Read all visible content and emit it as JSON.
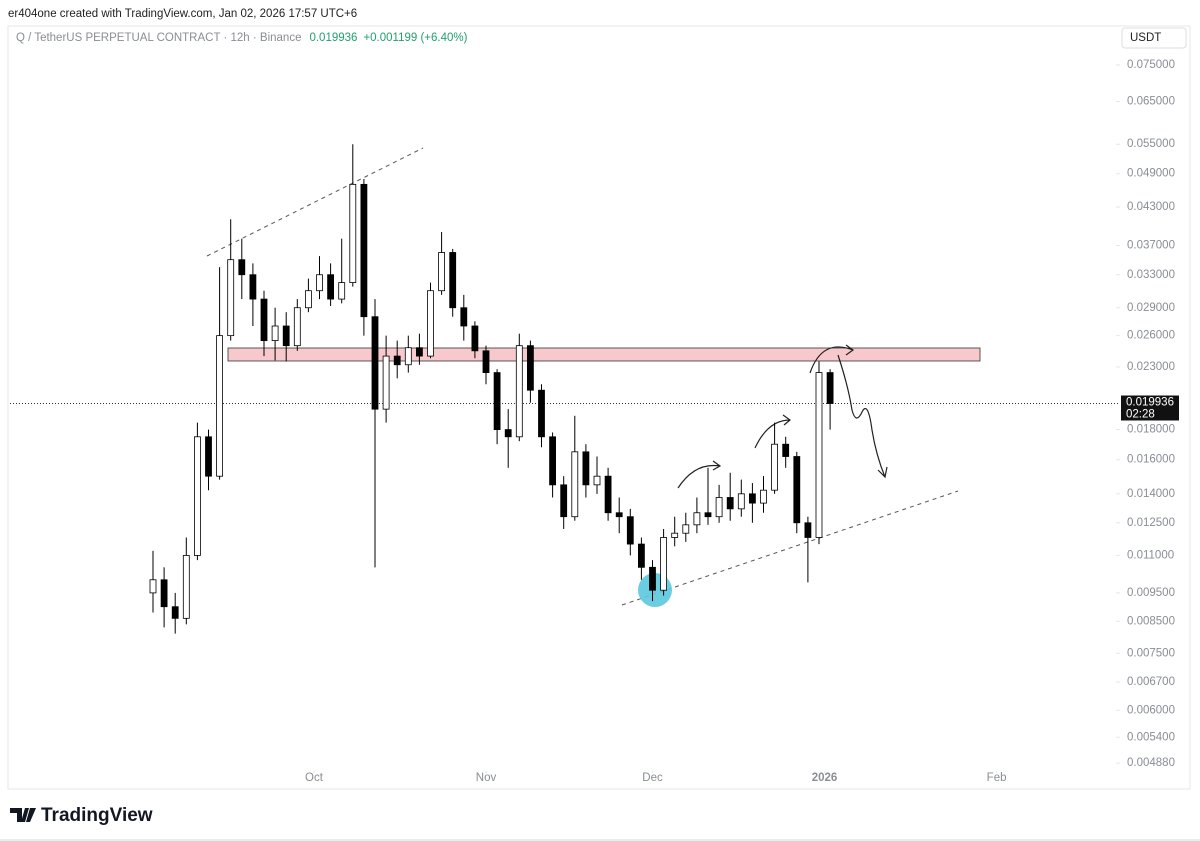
{
  "header": {
    "attribution": "er404one created with TradingView.com, Jan 02, 2026 17:57 UTC+6",
    "symbol": "Q / TetherUS PERPETUAL CONTRACT · 12h · Binance",
    "change": "+0.001199 (+6.40%)",
    "currency": "USDT"
  },
  "brand": "TradingView",
  "chart_data": {
    "type": "candlestick",
    "log_scale": true,
    "last_price": 0.019936,
    "countdown": "02:28",
    "categories": [
      null,
      null,
      null,
      null,
      null,
      null,
      null,
      null,
      null,
      null,
      null,
      null,
      null,
      null,
      null,
      null,
      null,
      null,
      null,
      null,
      null,
      null,
      null,
      null,
      null,
      null,
      null,
      null,
      null,
      null,
      null,
      null,
      null,
      null,
      null,
      null,
      null,
      null,
      null,
      null,
      null,
      null,
      null,
      null,
      null,
      null,
      null,
      null,
      null,
      null,
      null,
      null,
      null,
      null,
      null,
      null,
      null,
      null,
      null,
      null,
      null,
      null
    ],
    "open": [
      0.0095,
      0.01,
      0.009,
      0.0086,
      0.011,
      0.0175,
      0.015,
      0.026,
      0.035,
      0.033,
      0.03,
      0.0255,
      0.027,
      0.025,
      0.029,
      0.031,
      0.033,
      0.03,
      0.032,
      0.047,
      0.028,
      0.0195,
      0.024,
      0.0232,
      0.0248,
      0.024,
      0.031,
      0.036,
      0.029,
      0.027,
      0.0245,
      0.0225,
      0.018,
      0.0175,
      0.025,
      0.021,
      0.0175,
      0.0145,
      0.0128,
      0.0165,
      0.0145,
      0.015,
      0.013,
      0.0128,
      0.0115,
      0.0105,
      0.0096,
      0.0118,
      0.012,
      0.0124,
      0.013,
      0.0128,
      0.0138,
      0.0132,
      0.014,
      0.0135,
      0.0142,
      0.017,
      0.0162,
      0.0125,
      0.0118,
      0.0225
    ],
    "high": [
      0.0112,
      0.0105,
      0.0095,
      0.0118,
      0.0185,
      0.018,
      0.034,
      0.041,
      0.038,
      0.0345,
      0.031,
      0.029,
      0.0285,
      0.03,
      0.0325,
      0.0355,
      0.0345,
      0.038,
      0.055,
      0.048,
      0.03,
      0.026,
      0.0255,
      0.026,
      0.0262,
      0.032,
      0.039,
      0.0365,
      0.0305,
      0.0275,
      0.025,
      0.0228,
      0.0195,
      0.0262,
      0.0255,
      0.0215,
      0.0178,
      0.015,
      0.019,
      0.017,
      0.0162,
      0.0155,
      0.0138,
      0.0132,
      0.0118,
      0.0108,
      0.0122,
      0.0128,
      0.013,
      0.0138,
      0.0155,
      0.0145,
      0.0152,
      0.0148,
      0.0146,
      0.015,
      0.0185,
      0.0175,
      0.0165,
      0.0128,
      0.0235,
      0.0228
    ],
    "low": [
      0.0088,
      0.0083,
      0.0081,
      0.0084,
      0.0108,
      0.0142,
      0.0148,
      0.0255,
      0.03,
      0.027,
      0.024,
      0.0236,
      0.0235,
      0.0245,
      0.0285,
      0.03,
      0.0292,
      0.0295,
      0.0315,
      0.026,
      0.0105,
      0.0185,
      0.022,
      0.0225,
      0.0232,
      0.0238,
      0.0305,
      0.028,
      0.0255,
      0.0238,
      0.0215,
      0.017,
      0.0155,
      0.0172,
      0.02,
      0.0168,
      0.0138,
      0.0122,
      0.0126,
      0.0138,
      0.014,
      0.0126,
      0.012,
      0.011,
      0.01,
      0.0092,
      0.0094,
      0.0114,
      0.0116,
      0.012,
      0.0124,
      0.0125,
      0.0126,
      0.0128,
      0.0125,
      0.013,
      0.014,
      0.0155,
      0.012,
      0.0099,
      0.0115,
      0.018
    ],
    "close": [
      0.01,
      0.009,
      0.0086,
      0.011,
      0.0175,
      0.015,
      0.026,
      0.035,
      0.033,
      0.03,
      0.0255,
      0.027,
      0.025,
      0.029,
      0.031,
      0.033,
      0.03,
      0.032,
      0.047,
      0.028,
      0.0195,
      0.024,
      0.0232,
      0.0248,
      0.024,
      0.031,
      0.036,
      0.029,
      0.027,
      0.0245,
      0.0225,
      0.018,
      0.0175,
      0.025,
      0.021,
      0.0175,
      0.0145,
      0.0128,
      0.0165,
      0.0145,
      0.015,
      0.013,
      0.0128,
      0.0115,
      0.0105,
      0.0096,
      0.0118,
      0.012,
      0.0124,
      0.013,
      0.0128,
      0.0138,
      0.0132,
      0.014,
      0.0135,
      0.0142,
      0.017,
      0.0162,
      0.0125,
      0.0118,
      0.0225,
      0.019936
    ],
    "ylim": [
      0.00475,
      0.0789
    ],
    "yticks": [
      {
        "value": 0.075,
        "label": "0.075000"
      },
      {
        "value": 0.065,
        "label": "0.065000"
      },
      {
        "value": 0.055,
        "label": "0.055000"
      },
      {
        "value": 0.049,
        "label": "0.049000"
      },
      {
        "value": 0.043,
        "label": "0.043000"
      },
      {
        "value": 0.037,
        "label": "0.037000"
      },
      {
        "value": 0.033,
        "label": "0.033000"
      },
      {
        "value": 0.029,
        "label": "0.029000"
      },
      {
        "value": 0.026,
        "label": "0.026000"
      },
      {
        "value": 0.023,
        "label": "0.023000"
      },
      {
        "value": 0.018,
        "label": "0.018000"
      },
      {
        "value": 0.016,
        "label": "0.016000"
      },
      {
        "value": 0.014,
        "label": "0.014000"
      },
      {
        "value": 0.0125,
        "label": "0.012500"
      },
      {
        "value": 0.011,
        "label": "0.011000"
      },
      {
        "value": 0.0095,
        "label": "0.009500"
      },
      {
        "value": 0.0085,
        "label": "0.008500"
      },
      {
        "value": 0.0075,
        "label": "0.007500"
      },
      {
        "value": 0.0067,
        "label": "0.006700"
      },
      {
        "value": 0.006,
        "label": "0.006000"
      },
      {
        "value": 0.0054,
        "label": "0.005400"
      },
      {
        "value": 0.00488,
        "label": "0.004880"
      }
    ],
    "xticks": [
      {
        "value": 14.5,
        "label": "Oct"
      },
      {
        "value": 30,
        "label": "Nov"
      },
      {
        "value": 45,
        "label": "Dec"
      },
      {
        "value": 60.5,
        "label": "2026"
      },
      {
        "value": 76,
        "label": "Feb"
      }
    ],
    "up_color": "#ffffff",
    "down_color": "#000000",
    "price_color": "#22a06b"
  }
}
